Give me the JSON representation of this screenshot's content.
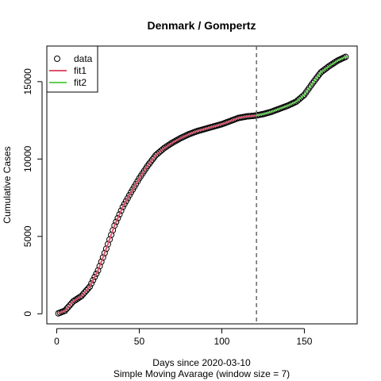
{
  "chart_data": {
    "type": "scatter",
    "title": "Denmark / Gompertz",
    "xlabel": "Days since 2020-03-10",
    "xlabel2": "Simple Moving Avarage (window size = 7)",
    "ylabel": "Cumulative Cases",
    "xlim": [
      -6,
      182
    ],
    "ylim": [
      -650,
      17300
    ],
    "x_ticks": [
      0,
      50,
      100,
      150
    ],
    "y_ticks": [
      0,
      5000,
      10000,
      15000
    ],
    "vline_x": 121,
    "legend": {
      "position": "top-left",
      "entries": [
        {
          "label": "data",
          "kind": "point",
          "color": "#000000"
        },
        {
          "label": "fit1",
          "kind": "line",
          "color": "#DF536B"
        },
        {
          "label": "fit2",
          "kind": "line",
          "color": "#61D04F"
        }
      ]
    },
    "data_points": [
      [
        1,
        30
      ],
      [
        5,
        200
      ],
      [
        10,
        800
      ],
      [
        15,
        1150
      ],
      [
        20,
        1750
      ],
      [
        25,
        2800
      ],
      [
        30,
        4200
      ],
      [
        35,
        5700
      ],
      [
        40,
        6900
      ],
      [
        45,
        7850
      ],
      [
        50,
        8750
      ],
      [
        55,
        9550
      ],
      [
        60,
        10250
      ],
      [
        65,
        10700
      ],
      [
        70,
        11050
      ],
      [
        75,
        11350
      ],
      [
        80,
        11600
      ],
      [
        85,
        11800
      ],
      [
        90,
        11950
      ],
      [
        95,
        12100
      ],
      [
        100,
        12250
      ],
      [
        105,
        12450
      ],
      [
        110,
        12650
      ],
      [
        115,
        12750
      ],
      [
        120,
        12800
      ],
      [
        125,
        12900
      ],
      [
        130,
        13050
      ],
      [
        135,
        13250
      ],
      [
        140,
        13450
      ],
      [
        145,
        13700
      ],
      [
        150,
        14150
      ],
      [
        155,
        14900
      ],
      [
        160,
        15600
      ],
      [
        165,
        16000
      ],
      [
        170,
        16350
      ],
      [
        175,
        16600
      ]
    ],
    "series": [
      {
        "name": "fit1",
        "color": "#DF536B",
        "x_range": [
          1,
          121
        ]
      },
      {
        "name": "fit2",
        "color": "#61D04F",
        "x_range": [
          121,
          176
        ]
      }
    ]
  }
}
